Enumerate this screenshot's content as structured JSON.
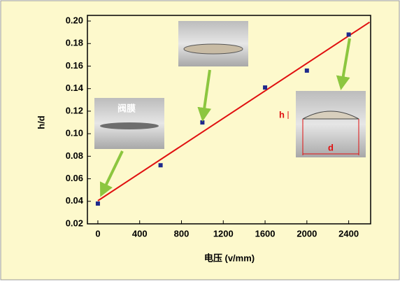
{
  "chart_data": {
    "type": "scatter",
    "x_label": "电压 (v/mm)",
    "y_label": "h/d",
    "xlim": [
      -100,
      2610
    ],
    "ylim": [
      0.02,
      0.205
    ],
    "xticks": [
      0,
      400,
      800,
      1200,
      1600,
      2000,
      2400
    ],
    "yticks": [
      0.02,
      0.04,
      0.06,
      0.08,
      {
        "value": 0.1,
        "label": "0.10"
      },
      0.12,
      0.14,
      0.16,
      0.18,
      {
        "value": 0.2,
        "label": "0.20"
      }
    ],
    "series": [
      {
        "style": "points",
        "color": "#1f2a8c",
        "x": [
          0,
          600,
          1000,
          1600,
          2000,
          2400
        ],
        "values": [
          0.038,
          0.072,
          0.11,
          0.141,
          0.156,
          0.188
        ]
      },
      {
        "style": "line",
        "color": "#e01010",
        "x": [
          0,
          2600
        ],
        "values": [
          0.0405,
          0.199
        ]
      }
    ],
    "annotations": [
      "阀膜",
      "h",
      "d"
    ]
  }
}
